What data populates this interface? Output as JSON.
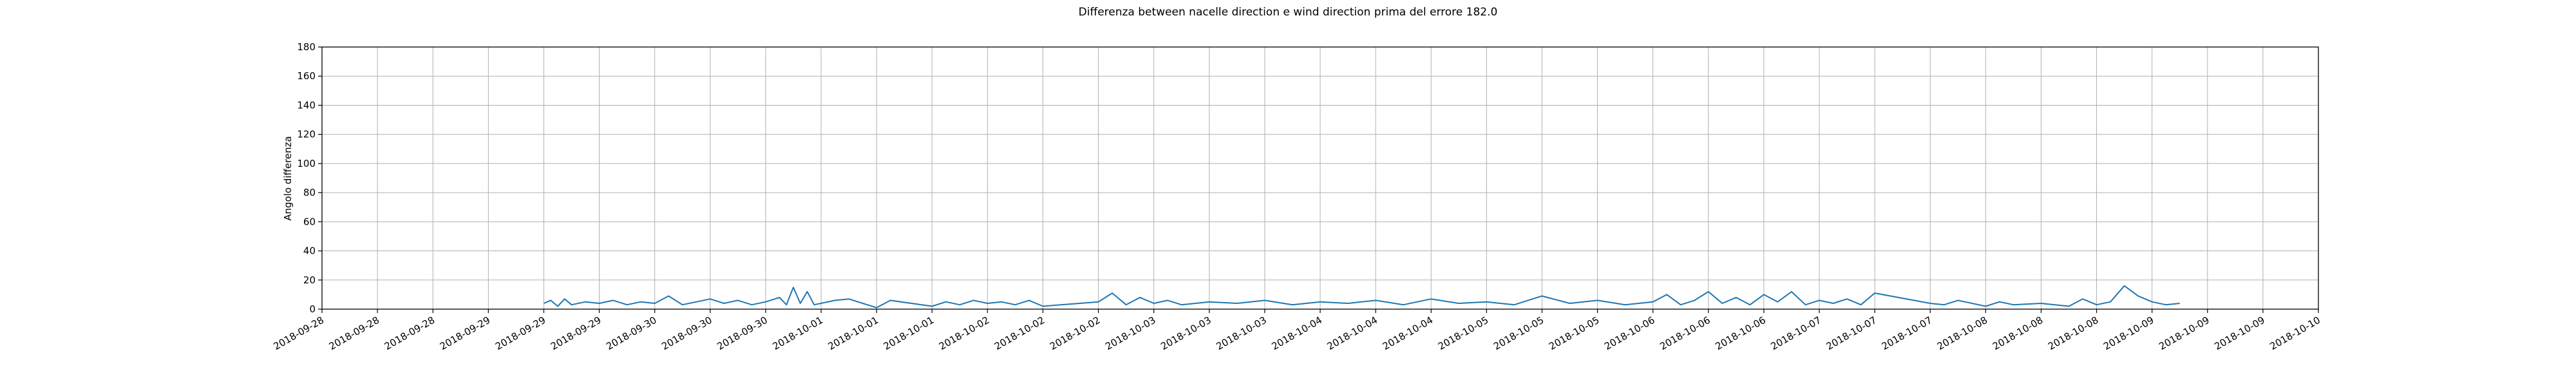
{
  "chart_data": {
    "type": "line",
    "title": "Differenza between nacelle direction e wind direction prima del errore 182.0",
    "xlabel": "",
    "ylabel": "Angolo differenza",
    "ylim": [
      0,
      180
    ],
    "yticks": [
      0,
      20,
      40,
      60,
      80,
      100,
      120,
      140,
      160,
      180
    ],
    "xticks": [
      "2018-09-28",
      "2018-09-28",
      "2018-09-28",
      "2018-09-29",
      "2018-09-29",
      "2018-09-29",
      "2018-09-30",
      "2018-09-30",
      "2018-09-30",
      "2018-10-01",
      "2018-10-01",
      "2018-10-01",
      "2018-10-02",
      "2018-10-02",
      "2018-10-02",
      "2018-10-03",
      "2018-10-03",
      "2018-10-03",
      "2018-10-04",
      "2018-10-04",
      "2018-10-04",
      "2018-10-05",
      "2018-10-05",
      "2018-10-05",
      "2018-10-06",
      "2018-10-06",
      "2018-10-06",
      "2018-10-07",
      "2018-10-07",
      "2018-10-07",
      "2018-10-08",
      "2018-10-08",
      "2018-10-08",
      "2018-10-09",
      "2018-10-09",
      "2018-10-09",
      "2018-10-10"
    ],
    "grid": true,
    "series_color": "#1f77b4",
    "series": [
      {
        "x": [
          "2018-09-29T08:00",
          "2018-09-29T09:00",
          "2018-09-29T10:00",
          "2018-09-29T11:00",
          "2018-09-29T12:00",
          "2018-09-29T14:00",
          "2018-09-29T16:00",
          "2018-09-29T18:00",
          "2018-09-29T20:00",
          "2018-09-29T22:00",
          "2018-09-30T00:00",
          "2018-09-30T02:00",
          "2018-09-30T04:00",
          "2018-09-30T06:00",
          "2018-09-30T08:00",
          "2018-09-30T10:00",
          "2018-09-30T12:00",
          "2018-09-30T14:00",
          "2018-09-30T16:00",
          "2018-09-30T18:00",
          "2018-09-30T19:00",
          "2018-09-30T20:00",
          "2018-09-30T21:00",
          "2018-09-30T22:00",
          "2018-09-30T23:00",
          "2018-10-01T02:00",
          "2018-10-01T04:00",
          "2018-10-01T06:00",
          "2018-10-01T08:00",
          "2018-10-01T10:00",
          "2018-10-01T16:00",
          "2018-10-01T18:00",
          "2018-10-01T20:00",
          "2018-10-01T22:00",
          "2018-10-02T00:00",
          "2018-10-02T02:00",
          "2018-10-02T04:00",
          "2018-10-02T06:00",
          "2018-10-02T08:00",
          "2018-10-02T16:00",
          "2018-10-02T18:00",
          "2018-10-02T20:00",
          "2018-10-02T22:00",
          "2018-10-03T00:00",
          "2018-10-03T02:00",
          "2018-10-03T04:00",
          "2018-10-03T08:00",
          "2018-10-03T12:00",
          "2018-10-03T16:00",
          "2018-10-03T20:00",
          "2018-10-04T00:00",
          "2018-10-04T04:00",
          "2018-10-04T08:00",
          "2018-10-04T12:00",
          "2018-10-04T16:00",
          "2018-10-04T20:00",
          "2018-10-05T00:00",
          "2018-10-05T04:00",
          "2018-10-05T08:00",
          "2018-10-05T12:00",
          "2018-10-05T16:00",
          "2018-10-05T20:00",
          "2018-10-06T00:00",
          "2018-10-06T02:00",
          "2018-10-06T04:00",
          "2018-10-06T06:00",
          "2018-10-06T08:00",
          "2018-10-06T10:00",
          "2018-10-06T12:00",
          "2018-10-06T14:00",
          "2018-10-06T16:00",
          "2018-10-06T18:00",
          "2018-10-06T20:00",
          "2018-10-06T22:00",
          "2018-10-07T00:00",
          "2018-10-07T02:00",
          "2018-10-07T04:00",
          "2018-10-07T06:00",
          "2018-10-07T08:00",
          "2018-10-07T16:00",
          "2018-10-07T18:00",
          "2018-10-07T20:00",
          "2018-10-08T00:00",
          "2018-10-08T02:00",
          "2018-10-08T04:00",
          "2018-10-08T08:00",
          "2018-10-08T12:00",
          "2018-10-08T14:00",
          "2018-10-08T16:00",
          "2018-10-08T18:00",
          "2018-10-08T20:00",
          "2018-10-08T22:00",
          "2018-10-09T00:00",
          "2018-10-09T02:00",
          "2018-10-09T04:00"
        ],
        "values": [
          4,
          6,
          2,
          7,
          3,
          5,
          4,
          6,
          3,
          5,
          4,
          9,
          3,
          5,
          7,
          4,
          6,
          3,
          5,
          8,
          3,
          15,
          4,
          12,
          3,
          6,
          7,
          4,
          1,
          6,
          2,
          5,
          3,
          6,
          4,
          5,
          3,
          6,
          2,
          5,
          11,
          3,
          8,
          4,
          6,
          3,
          5,
          4,
          6,
          3,
          5,
          4,
          6,
          3,
          7,
          4,
          5,
          3,
          9,
          4,
          6,
          3,
          5,
          10,
          3,
          6,
          12,
          4,
          8,
          3,
          10,
          5,
          12,
          3,
          6,
          4,
          7,
          3,
          11,
          4,
          3,
          6,
          2,
          5,
          3,
          4,
          2,
          7,
          3,
          5,
          16,
          9,
          5,
          3,
          4
        ]
      }
    ]
  }
}
